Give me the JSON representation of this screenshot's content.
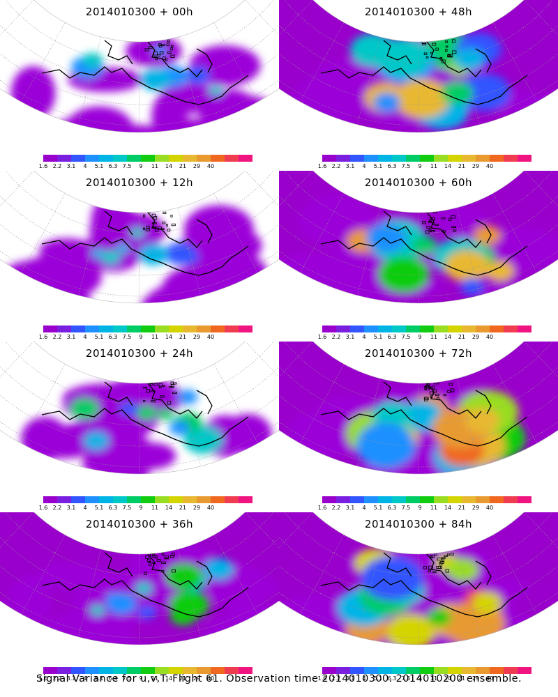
{
  "panels": [
    {
      "title": "2014010300 + 00h",
      "intensity": 0.05
    },
    {
      "title": "2014010300 + 48h",
      "intensity": 0.55
    },
    {
      "title": "2014010300 + 12h",
      "intensity": 0.12
    },
    {
      "title": "2014010300 + 60h",
      "intensity": 0.62
    },
    {
      "title": "2014010300 + 24h",
      "intensity": 0.22
    },
    {
      "title": "2014010300 + 72h",
      "intensity": 0.72
    },
    {
      "title": "2014010300 + 36h",
      "intensity": 0.35
    },
    {
      "title": "2014010300 + 84h",
      "intensity": 0.82
    }
  ],
  "colorbar": {
    "colors": [
      "#9900cc",
      "#7a1fe0",
      "#3355ff",
      "#1e90ff",
      "#00b4e6",
      "#00c8c8",
      "#00cc66",
      "#11cc11",
      "#99dd22",
      "#d4d400",
      "#e8b830",
      "#e89a30",
      "#f06820",
      "#f03c50",
      "#f01480"
    ],
    "tick_labels": [
      "1.6",
      "2.2",
      "3.1",
      "4",
      "5.1",
      "6.3",
      "7.5",
      "9",
      "11",
      "14",
      "21",
      "29",
      "40"
    ]
  },
  "caption": "Signal Variance for u,v,T. Flight 61. Observation time 2014010300. 2014010200 ensemble."
}
